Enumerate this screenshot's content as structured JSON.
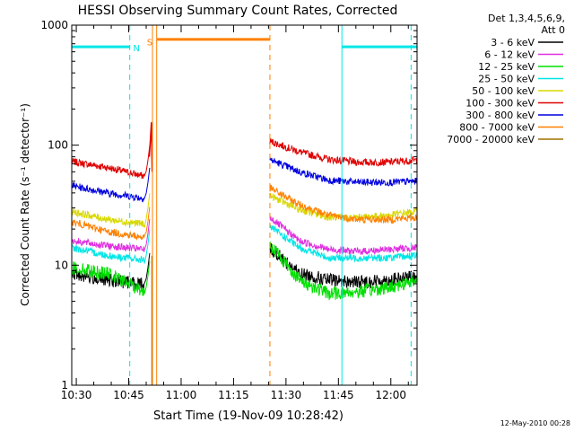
{
  "chart_data": {
    "type": "line",
    "title": "HESSI Observing Summary Count Rates, Corrected",
    "xlabel": "Start Time (19-Nov-09 10:28:42)",
    "ylabel": "Corrected Count Rate (s⁻¹ detector⁻¹)",
    "yscale": "log",
    "ylim": [
      1,
      1000
    ],
    "xlim_minutes_after_1030": [
      -1.3,
      97.5
    ],
    "x_ticks": [
      {
        "label": "10:30",
        "min": 0
      },
      {
        "label": "10:45",
        "min": 15
      },
      {
        "label": "11:00",
        "min": 30
      },
      {
        "label": "11:15",
        "min": 45
      },
      {
        "label": "11:30",
        "min": 60
      },
      {
        "label": "11:45",
        "min": 75
      },
      {
        "label": "12:00",
        "min": 90
      }
    ],
    "y_ticks": [
      {
        "label": "1",
        "value": 1
      },
      {
        "label": "10",
        "value": 10
      },
      {
        "label": "100",
        "value": 100
      },
      {
        "label": "1000",
        "value": 1000
      }
    ],
    "legend_header": [
      "Det 1,3,4,5,6,9,",
      "Att 0"
    ],
    "legend_position": "right",
    "series": [
      {
        "name": "3 - 6 keV",
        "color": "#000000",
        "pre": [
          8.5,
          7.5,
          7.0
        ],
        "post": [
          14,
          8.5,
          7.5,
          7.2,
          7.5,
          8.0
        ]
      },
      {
        "name": "6 - 12 keV",
        "color": "#e030e0",
        "pre": [
          16,
          14.5,
          13.5
        ],
        "post": [
          25,
          16,
          13.5,
          13,
          13.5,
          14
        ]
      },
      {
        "name": "12 - 25 keV",
        "color": "#00e000",
        "pre": [
          9.5,
          8.5,
          6.0
        ],
        "post": [
          15,
          7.5,
          5.8,
          6.0,
          6.5,
          7.5
        ]
      },
      {
        "name": "25 - 50 keV",
        "color": "#00e6e6",
        "pre": [
          14,
          12,
          11
        ],
        "post": [
          21,
          14,
          11.5,
          11.5,
          11.5,
          12
        ]
      },
      {
        "name": "50 - 100 keV",
        "color": "#d8d800",
        "pre": [
          28,
          24,
          22
        ],
        "post": [
          38,
          29,
          25,
          25,
          26,
          28
        ]
      },
      {
        "name": "100 - 300 keV",
        "color": "#e00000",
        "pre": [
          73,
          65,
          55
        ],
        "post": [
          108,
          88,
          76,
          72,
          72,
          75
        ]
      },
      {
        "name": "300 - 800 keV",
        "color": "#0000e0",
        "pre": [
          46,
          40,
          36
        ],
        "post": [
          76,
          60,
          51,
          49,
          49,
          50
        ]
      },
      {
        "name": "800 - 7000 keV",
        "color": "#ff8000",
        "pre": [
          23,
          19,
          17
        ],
        "post": [
          44,
          32,
          26,
          24,
          24,
          25
        ]
      },
      {
        "name": "7000 - 20000 keV",
        "color": "#a07000",
        "pre": [],
        "post": []
      }
    ],
    "pre_window_min": [
      -1.3,
      19.5
    ],
    "post_window_min": [
      55.4,
      97.5
    ],
    "flare_spike_min": 21.5,
    "spike_peak": 155,
    "annotations": [
      {
        "label": "N",
        "color": "#00e6e6",
        "x_min": 17.2,
        "level": 650
      },
      {
        "label": "S",
        "color": "#ff8000",
        "x_min": 21.0,
        "level": 730
      }
    ],
    "status_bars": [
      {
        "color": "#00e6e6",
        "from_min": -1.3,
        "to_min": 15.3,
        "level": 660
      },
      {
        "color": "#ff8000",
        "from_min": 23.0,
        "to_min": 55.4,
        "level": 760
      },
      {
        "color": "#00e6e6",
        "from_min": 76.0,
        "to_min": 97.5,
        "level": 660
      }
    ],
    "vertical_markers": [
      {
        "color": "#00e6e6",
        "x_min": -1.3,
        "style": "solid"
      },
      {
        "color": "#00e6e6",
        "x_min": 15.3,
        "style": "dashed"
      },
      {
        "color": "#ff8000",
        "x_min": 21.8,
        "style": "solid"
      },
      {
        "color": "#ff8000",
        "x_min": 23.0,
        "style": "solid"
      },
      {
        "color": "#ff8000",
        "x_min": 55.4,
        "style": "dashed"
      },
      {
        "color": "#00e6e6",
        "x_min": 76.0,
        "style": "solid"
      },
      {
        "color": "#00e6e6",
        "x_min": 95.8,
        "style": "dashed"
      }
    ]
  },
  "footer_timestamp": "12-May-2010 00:28"
}
